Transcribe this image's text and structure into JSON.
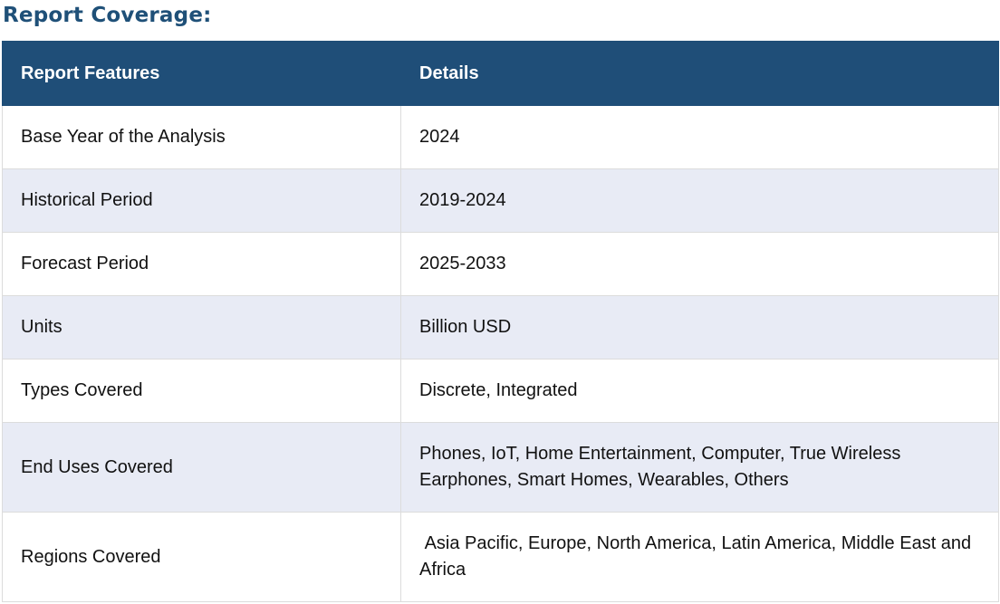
{
  "heading": "Report Coverage:",
  "table": {
    "headers": [
      "Report Features",
      "Details"
    ],
    "rows": [
      {
        "feature": "Base Year of the Analysis",
        "details": "2024"
      },
      {
        "feature": "Historical Period",
        "details": "2019-2024"
      },
      {
        "feature": "Forecast Period",
        "details": "2025-2033"
      },
      {
        "feature": "Units",
        "details": "Billion USD"
      },
      {
        "feature": "Types Covered",
        "details": "Discrete, Integrated"
      },
      {
        "feature": "End Uses Covered",
        "details": "Phones, IoT, Home Entertainment, Computer, True Wireless Earphones, Smart Homes, Wearables, Others"
      },
      {
        "feature": "Regions Covered",
        "details": " Asia Pacific, Europe, North America, Latin America, Middle East and Africa"
      }
    ]
  },
  "colors": {
    "heading": "#1f5078",
    "header_bg": "#1f4e78",
    "alt_row_bg": "#e8ebf5"
  }
}
